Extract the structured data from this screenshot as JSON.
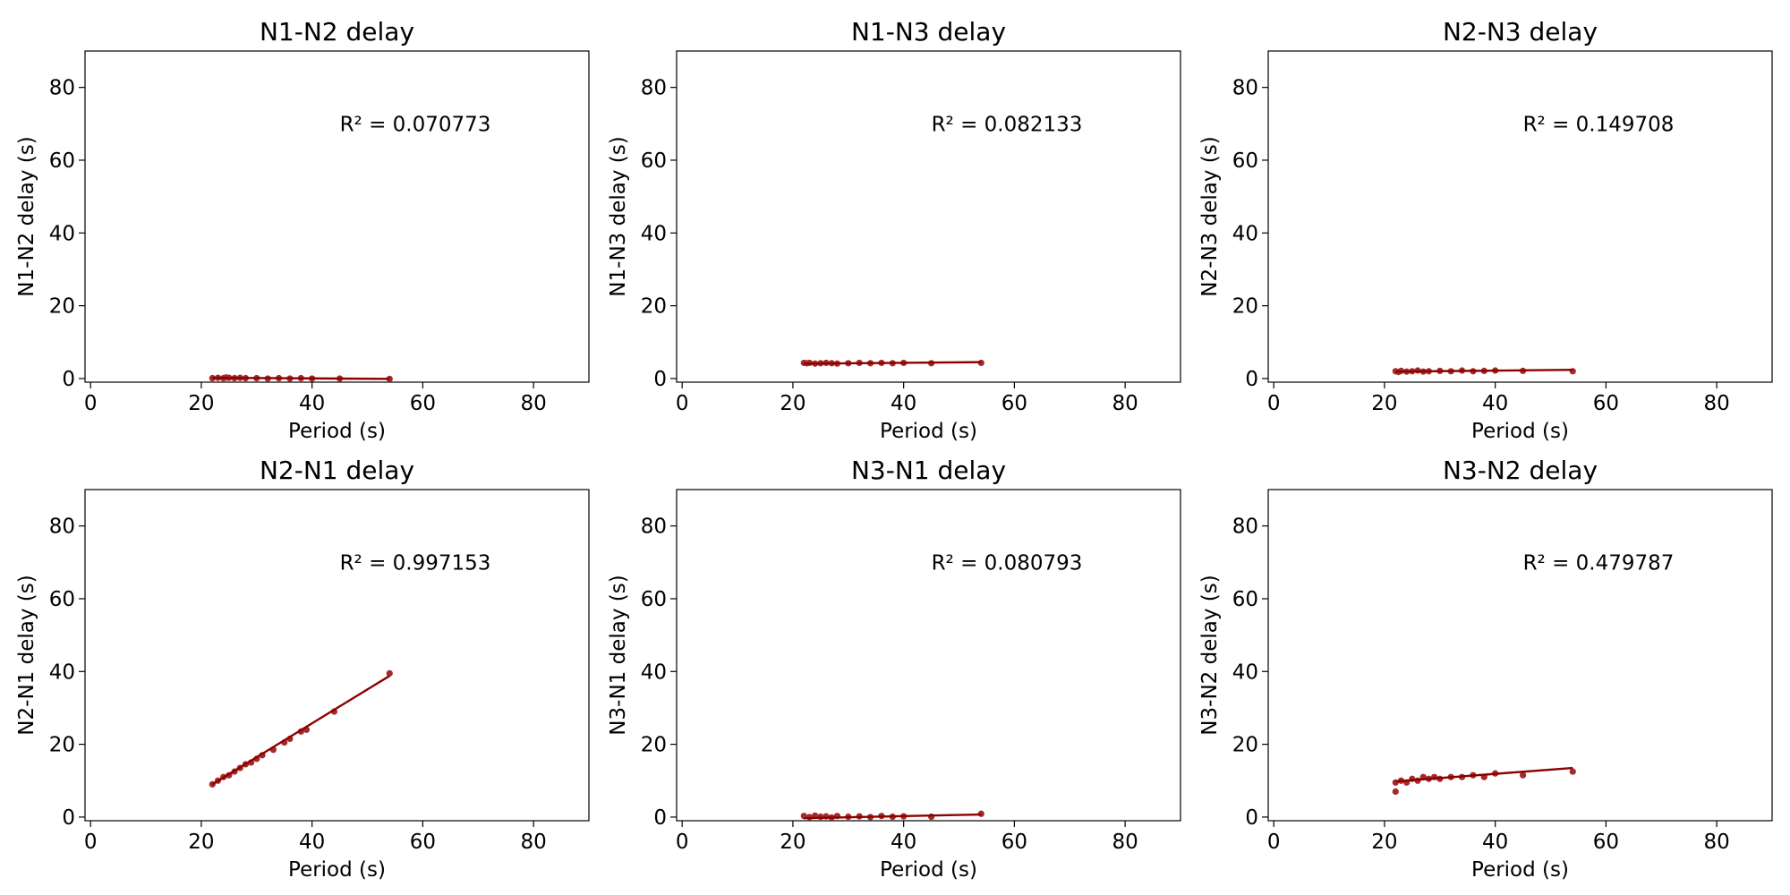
{
  "chart_data": [
    {
      "type": "scatter",
      "title": "N1-N2 delay",
      "xlabel": "Period (s)",
      "ylabel": "N1-N2 delay (s)",
      "xlim": [
        -1,
        90
      ],
      "ylim": [
        -1,
        90
      ],
      "xticks": [
        "0",
        "20",
        "40",
        "60",
        "80"
      ],
      "yticks": [
        "0",
        "20",
        "40",
        "60",
        "80"
      ],
      "annotation": "R² = 0.070773",
      "colors": {
        "points": "#a52a2a",
        "fit": "#8b0000"
      },
      "points": {
        "x": [
          22,
          23,
          24,
          24.5,
          25,
          26,
          27,
          28,
          30,
          32,
          34,
          36,
          38,
          40,
          45,
          54
        ],
        "y": [
          0.1,
          0.2,
          0.1,
          0.3,
          0.2,
          0.1,
          0.2,
          0.1,
          0.1,
          0.0,
          0.1,
          0.0,
          0.1,
          0.0,
          0.0,
          -0.1
        ]
      },
      "fit": {
        "x": [
          22,
          54
        ],
        "y": [
          0.2,
          -0.1
        ]
      }
    },
    {
      "type": "scatter",
      "title": "N1-N3 delay",
      "xlabel": "Period (s)",
      "ylabel": "N1-N3 delay (s)",
      "xlim": [
        -1,
        90
      ],
      "ylim": [
        -1,
        90
      ],
      "xticks": [
        "0",
        "20",
        "40",
        "60",
        "80"
      ],
      "yticks": [
        "0",
        "20",
        "40",
        "60",
        "80"
      ],
      "annotation": "R² = 0.082133",
      "colors": {
        "points": "#a52a2a",
        "fit": "#8b0000"
      },
      "points": {
        "x": [
          22,
          22.5,
          23,
          24,
          25,
          26,
          27,
          28,
          30,
          32,
          34,
          36,
          38,
          40,
          45,
          54
        ],
        "y": [
          4.3,
          4.2,
          4.3,
          4.1,
          4.2,
          4.3,
          4.2,
          4.1,
          4.2,
          4.3,
          4.2,
          4.3,
          4.2,
          4.3,
          4.2,
          4.3
        ]
      },
      "fit": {
        "x": [
          22,
          54
        ],
        "y": [
          4.1,
          4.5
        ]
      }
    },
    {
      "type": "scatter",
      "title": "N2-N3 delay",
      "xlabel": "Period (s)",
      "ylabel": "N2-N3 delay (s)",
      "xlim": [
        -1,
        90
      ],
      "ylim": [
        -1,
        90
      ],
      "xticks": [
        "0",
        "20",
        "40",
        "60",
        "80"
      ],
      "yticks": [
        "0",
        "20",
        "40",
        "60",
        "80"
      ],
      "annotation": "R² = 0.149708",
      "colors": {
        "points": "#a52a2a",
        "fit": "#8b0000"
      },
      "points": {
        "x": [
          22,
          22.5,
          23,
          24,
          25,
          26,
          27,
          28,
          30,
          32,
          34,
          36,
          38,
          40,
          45,
          54
        ],
        "y": [
          2.0,
          1.8,
          2.1,
          1.9,
          2.0,
          2.2,
          1.9,
          2.0,
          2.1,
          2.0,
          2.2,
          2.0,
          2.1,
          2.2,
          2.1,
          2.0
        ]
      },
      "fit": {
        "x": [
          22,
          54
        ],
        "y": [
          1.9,
          2.4
        ]
      }
    },
    {
      "type": "scatter",
      "title": "N2-N1 delay",
      "xlabel": "Period (s)",
      "ylabel": "N2-N1 delay (s)",
      "xlim": [
        -1,
        90
      ],
      "ylim": [
        -1,
        90
      ],
      "xticks": [
        "0",
        "20",
        "40",
        "60",
        "80"
      ],
      "yticks": [
        "0",
        "20",
        "40",
        "60",
        "80"
      ],
      "annotation": "R² = 0.997153",
      "colors": {
        "points": "#a52a2a",
        "fit": "#8b0000"
      },
      "points": {
        "x": [
          22,
          23,
          24,
          25,
          26,
          27,
          28,
          29,
          30,
          31,
          33,
          35,
          36,
          38,
          39,
          44,
          54
        ],
        "y": [
          9,
          10,
          11,
          11.5,
          12.5,
          13.5,
          14.5,
          15,
          16,
          17,
          18.5,
          20.5,
          21.5,
          23.5,
          24,
          29,
          39.5
        ]
      },
      "fit": {
        "x": [
          22,
          54
        ],
        "y": [
          9,
          38.8
        ]
      }
    },
    {
      "type": "scatter",
      "title": "N3-N1 delay",
      "xlabel": "Period (s)",
      "ylabel": "N3-N1 delay (s)",
      "xlim": [
        -1,
        90
      ],
      "ylim": [
        -1,
        90
      ],
      "xticks": [
        "0",
        "20",
        "40",
        "60",
        "80"
      ],
      "yticks": [
        "0",
        "20",
        "40",
        "60",
        "80"
      ],
      "annotation": "R² = 0.080793",
      "colors": {
        "points": "#a52a2a",
        "fit": "#8b0000"
      },
      "points": {
        "x": [
          22,
          23,
          24,
          25,
          26,
          27,
          28,
          30,
          32,
          34,
          36,
          38,
          40,
          45,
          54
        ],
        "y": [
          0.3,
          0.0,
          0.4,
          0.1,
          0.2,
          -0.1,
          0.3,
          0.1,
          0.2,
          0.0,
          0.3,
          0.1,
          0.2,
          0.1,
          0.9
        ]
      },
      "fit": {
        "x": [
          22,
          54
        ],
        "y": [
          -0.3,
          0.7
        ]
      }
    },
    {
      "type": "scatter",
      "title": "N3-N2 delay",
      "xlabel": "Period (s)",
      "ylabel": "N3-N2 delay (s)",
      "xlim": [
        -1,
        90
      ],
      "ylim": [
        -1,
        90
      ],
      "xticks": [
        "0",
        "20",
        "40",
        "60",
        "80"
      ],
      "yticks": [
        "0",
        "20",
        "40",
        "60",
        "80"
      ],
      "annotation": "R² = 0.479787",
      "colors": {
        "points": "#a52a2a",
        "fit": "#8b0000"
      },
      "points": {
        "x": [
          22,
          22,
          23,
          24,
          25,
          26,
          27,
          28,
          29,
          30,
          32,
          34,
          36,
          38,
          40,
          45,
          54
        ],
        "y": [
          7,
          9.5,
          10,
          9.5,
          10.5,
          10,
          11,
          10.5,
          11,
          10.5,
          11,
          11,
          11.5,
          11,
          12,
          11.5,
          12.5
        ]
      },
      "fit": {
        "x": [
          22,
          54
        ],
        "y": [
          9.8,
          13.5
        ]
      }
    }
  ]
}
